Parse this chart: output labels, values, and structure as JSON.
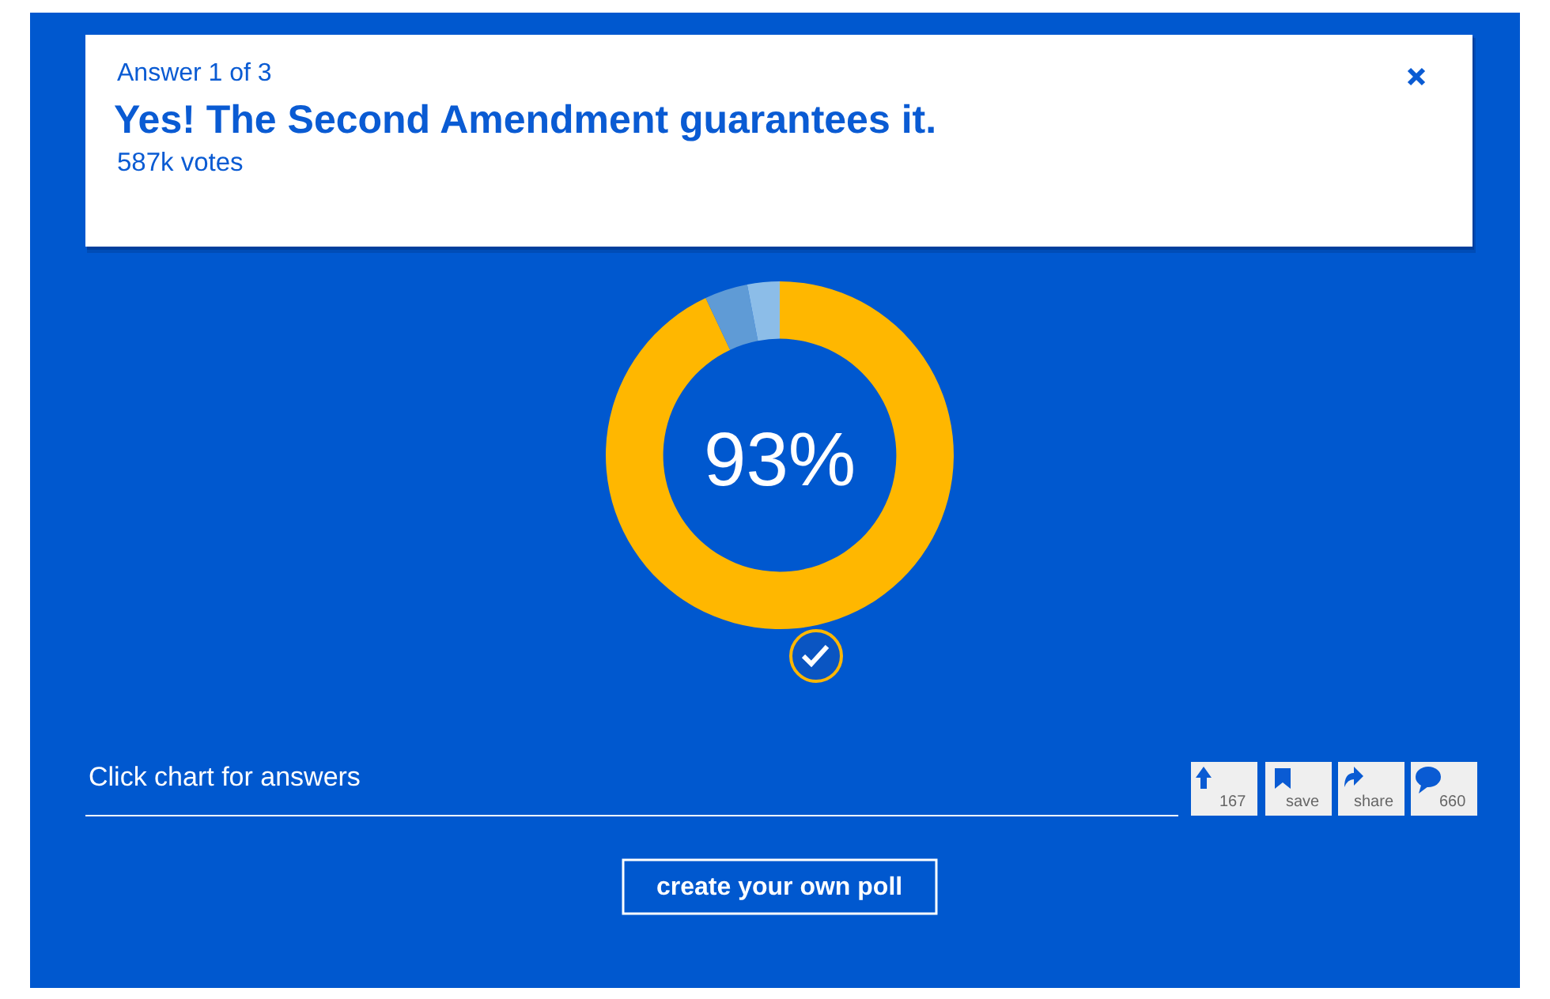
{
  "chart_data": {
    "type": "donut",
    "title": "Yes! The Second Amendment guarantees it.",
    "subtitle": "Answer 1 of 3",
    "categories": [
      null,
      null,
      null
    ],
    "values": [
      93,
      4,
      3
    ],
    "colors": [
      "#ffb700",
      "#5f9bd6",
      "#8cbde8"
    ],
    "annotations": [
      "587k votes",
      "93%",
      "Click chart for answers",
      "167",
      "save",
      "share",
      "660",
      "create your own poll"
    ]
  }
}
